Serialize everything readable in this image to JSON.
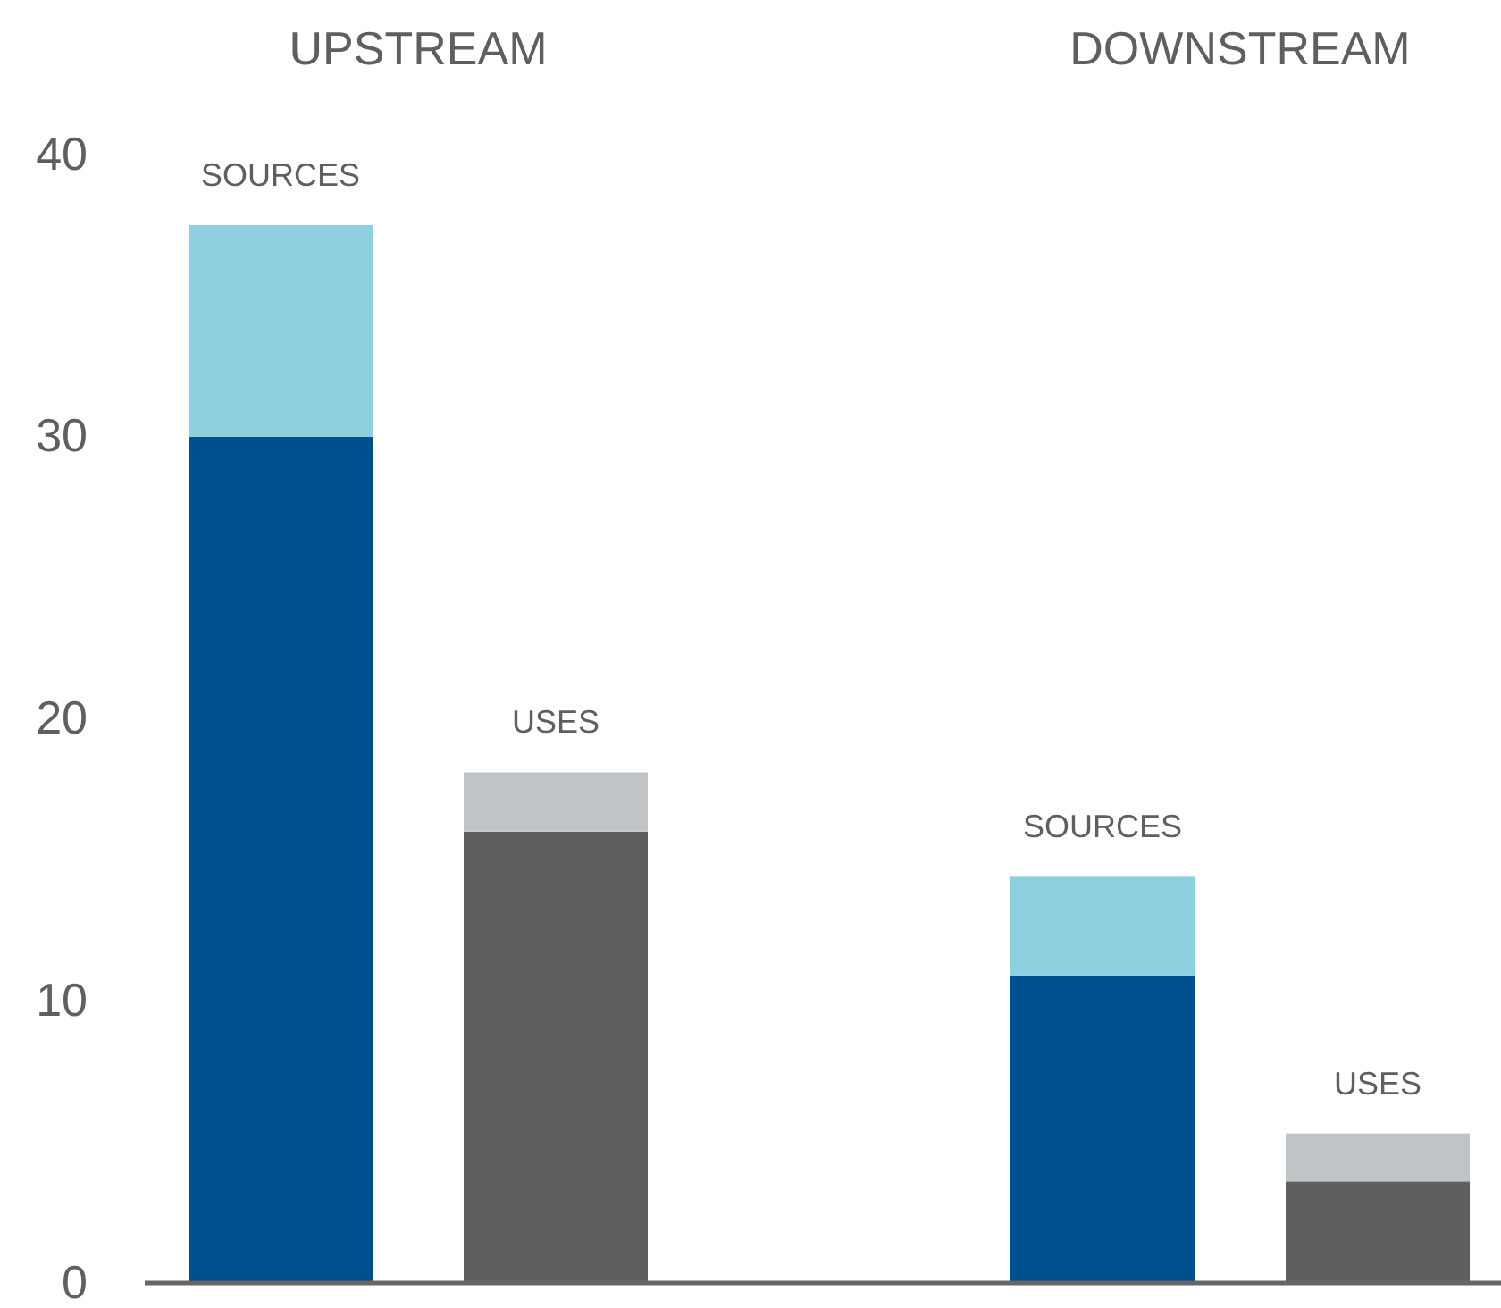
{
  "chart_data": {
    "type": "bar",
    "stacked": true,
    "categories": [
      "SOURCES",
      "USES",
      "SOURCES",
      "USES"
    ],
    "series": [
      {
        "colors": [
          "#004f8f",
          "#5f5f5f",
          "#004f8f",
          "#5f5f5f"
        ],
        "values": [
          30,
          16,
          10.9,
          3.6
        ]
      },
      {
        "colors": [
          "#8ecfe0",
          "#c1c4c7",
          "#8ecfe0",
          "#c1c4c7"
        ],
        "values": [
          7.5,
          2.1,
          3.5,
          1.7
        ]
      }
    ],
    "ylim": [
      0,
      40
    ],
    "yticks": [
      0,
      10,
      20,
      30,
      40
    ],
    "annotations": [
      "UPSTREAM",
      "DOWNSTREAM"
    ]
  }
}
